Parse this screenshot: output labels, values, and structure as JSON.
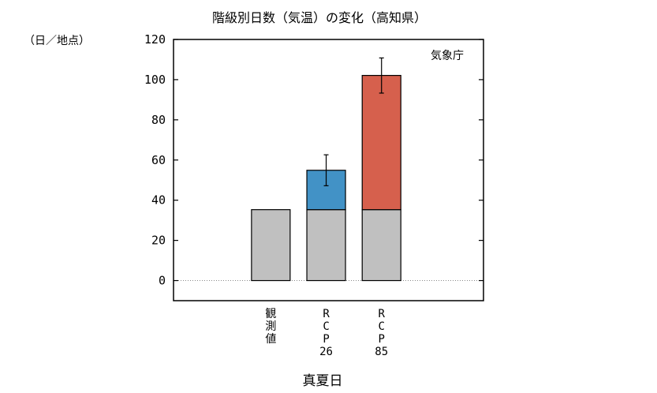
{
  "chart_data": {
    "type": "bar",
    "title": "階級別日数（気温）の変化（高知県）",
    "ylabel": "（日／地点）",
    "xlabel": "真夏日",
    "source": "気象庁",
    "ylim": [
      -10,
      120
    ],
    "yticks": [
      0,
      20,
      40,
      60,
      80,
      100,
      120
    ],
    "zero_line": "dotted",
    "grid": false,
    "categories": [
      {
        "label_lines": [
          "観",
          "測",
          "値"
        ]
      },
      {
        "label_lines": [
          "R",
          "C",
          "P",
          "26"
        ]
      },
      {
        "label_lines": [
          "R",
          "C",
          "P",
          "85"
        ]
      }
    ],
    "series": [
      {
        "values": [
          35.3,
          35.3,
          35.3
        ],
        "color": "#c0c0c0"
      },
      {
        "values": [
          0,
          19.6,
          66.8
        ],
        "color": "#4292c6"
      }
    ],
    "increase_colors": [
      "",
      "#4292c6",
      "#d6604d"
    ],
    "error_bars": [
      null,
      {
        "low": 47.2,
        "high": 62.6
      },
      {
        "low": 93.3,
        "high": 110.8
      }
    ]
  }
}
